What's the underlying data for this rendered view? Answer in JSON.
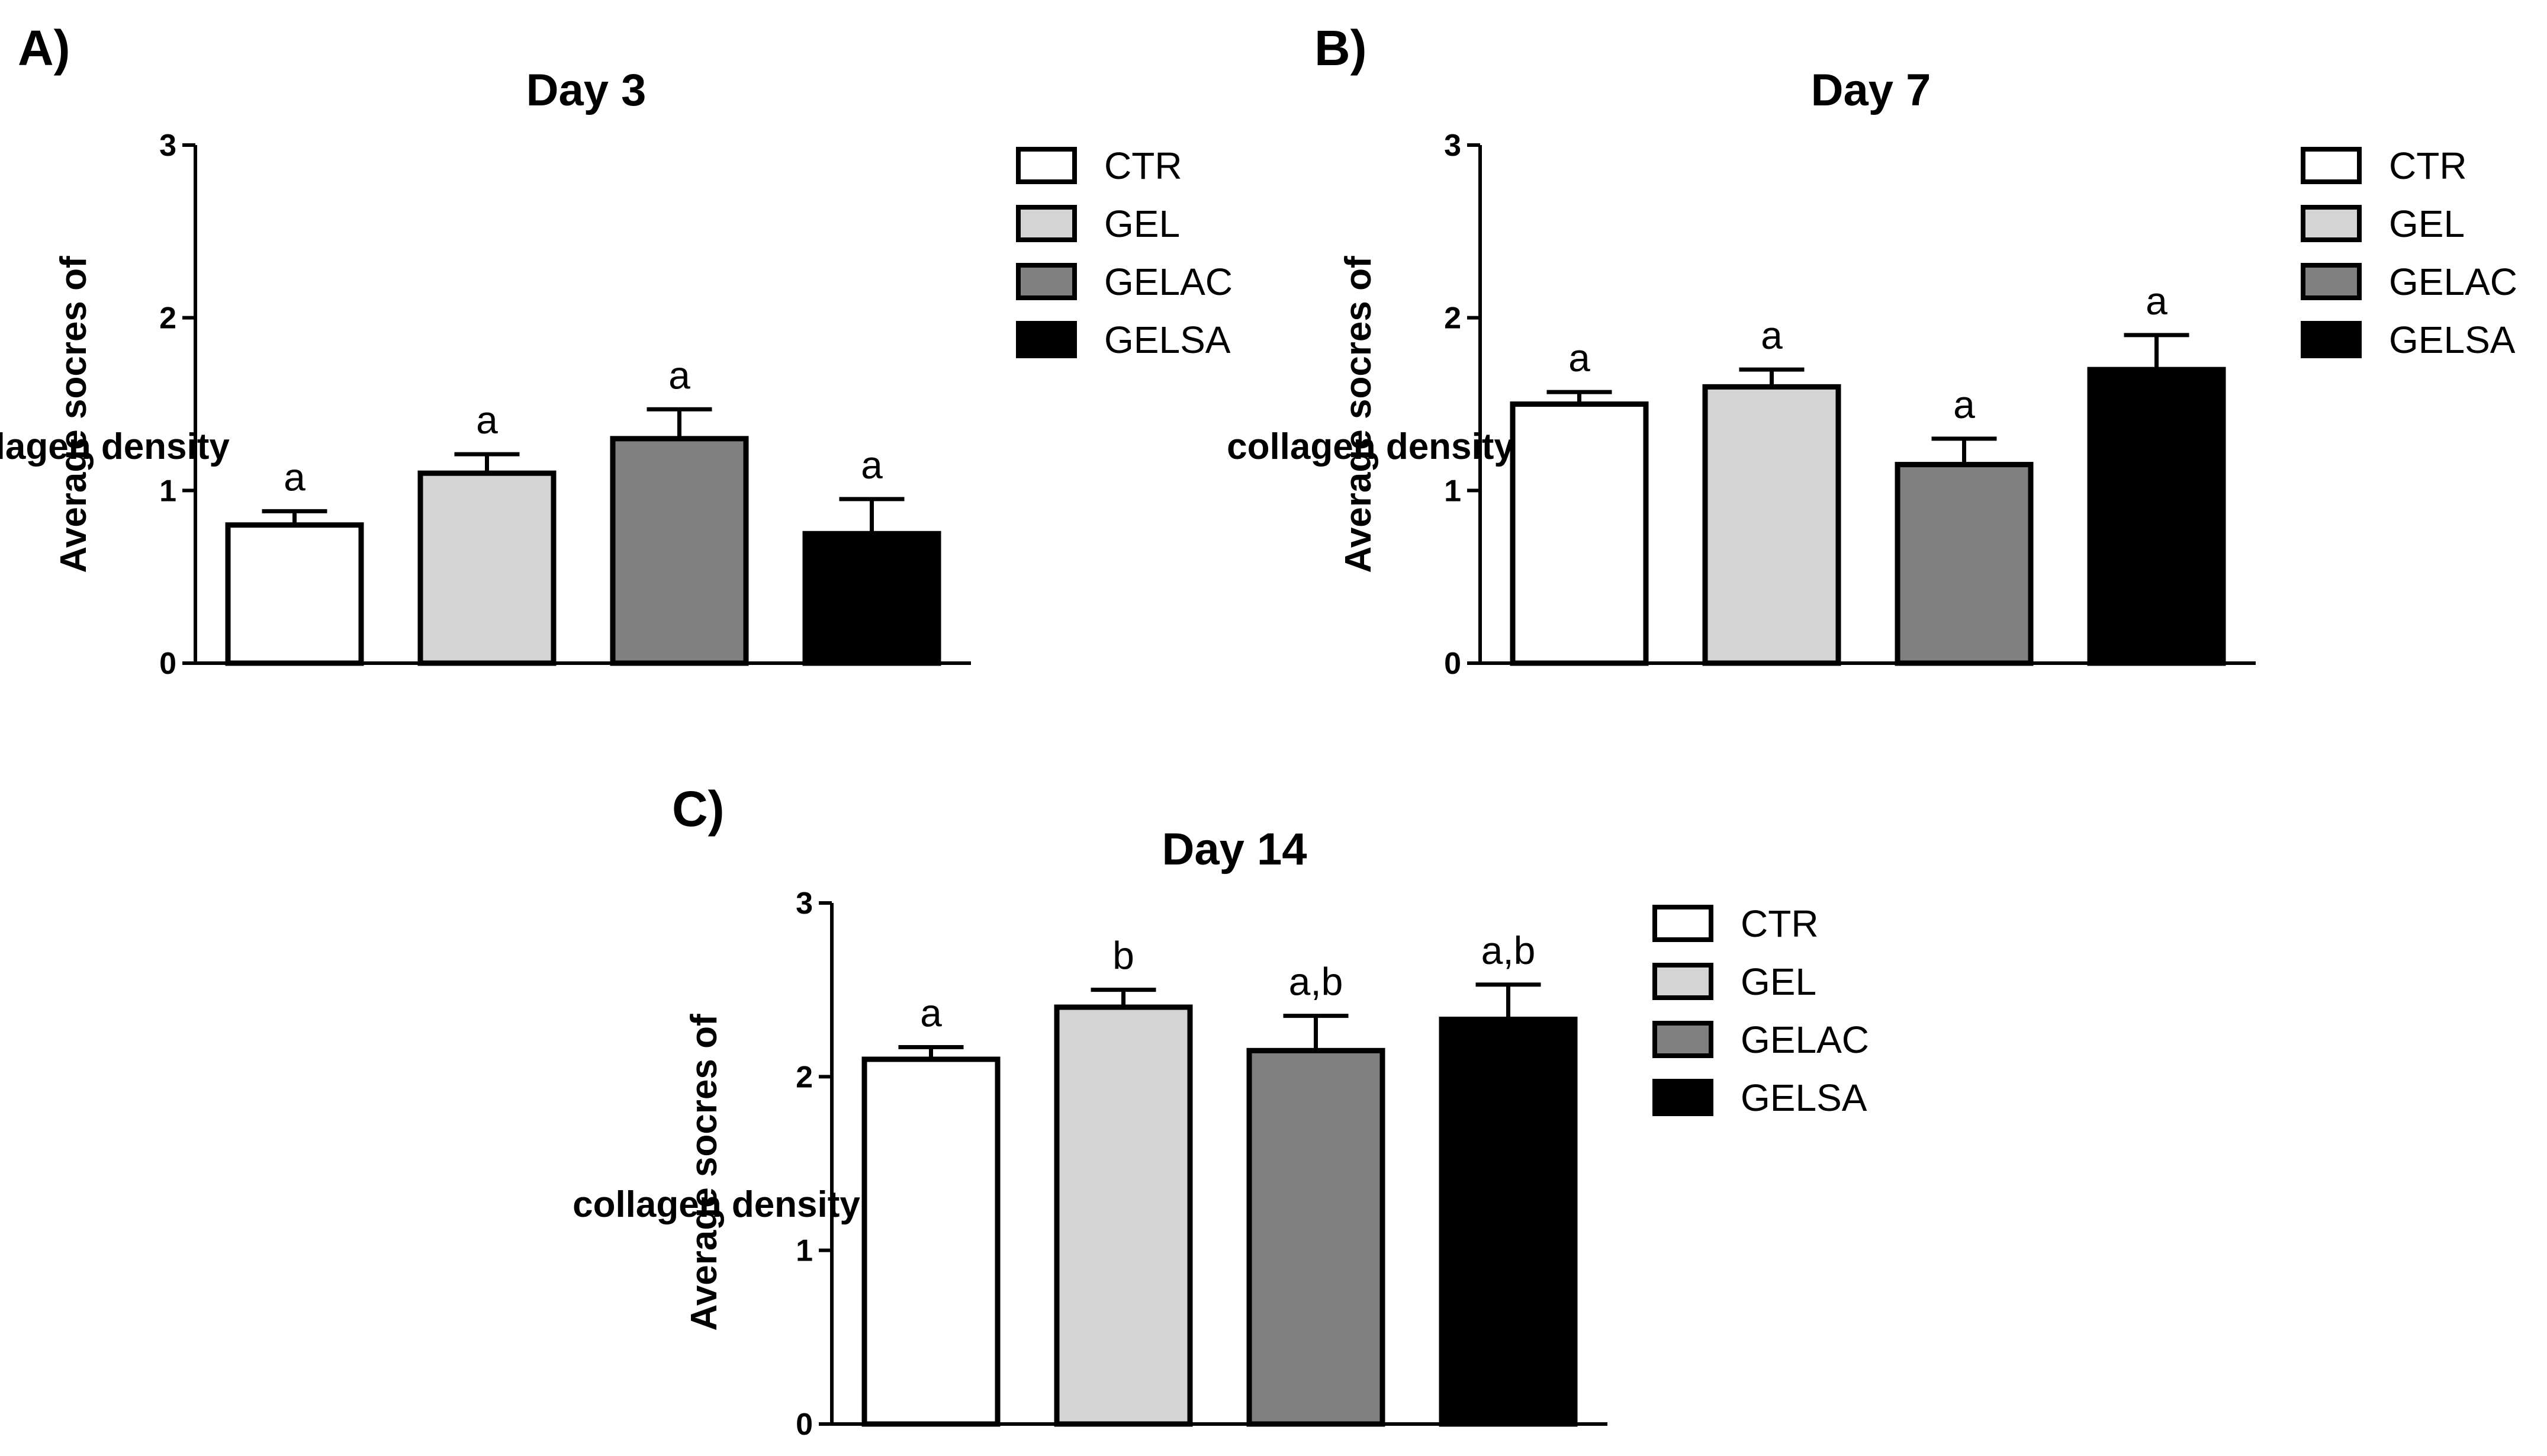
{
  "chart_data": [
    {
      "type": "bar",
      "panel": "A)",
      "title": "Day 3",
      "xlabel": "",
      "ylabel": [
        "Average socres of",
        "collagen density"
      ],
      "ylim": [
        0,
        3
      ],
      "yticks": [
        "0",
        "1",
        "2",
        "3"
      ],
      "categories": [
        "CTR",
        "GEL",
        "GELAC",
        "GELSA"
      ],
      "values": [
        0.8,
        1.1,
        1.3,
        0.75
      ],
      "errors": [
        0.08,
        0.11,
        0.17,
        0.2
      ],
      "significance": [
        "a",
        "a",
        "a",
        "a"
      ],
      "colors": [
        "#ffffff",
        "#d4d4d4",
        "#808080",
        "#000000"
      ],
      "legend": [
        "CTR",
        "GEL",
        "GELAC",
        "GELSA"
      ],
      "legend_position": "right"
    },
    {
      "type": "bar",
      "panel": "B)",
      "title": "Day 7",
      "xlabel": "",
      "ylabel": [
        "Average socres of",
        "collagen density"
      ],
      "ylim": [
        0,
        3
      ],
      "yticks": [
        "0",
        "1",
        "2",
        "3"
      ],
      "categories": [
        "CTR",
        "GEL",
        "GELAC",
        "GELSA"
      ],
      "values": [
        1.5,
        1.6,
        1.15,
        1.7
      ],
      "errors": [
        0.07,
        0.1,
        0.15,
        0.2
      ],
      "significance": [
        "a",
        "a",
        "a",
        "a"
      ],
      "colors": [
        "#ffffff",
        "#d4d4d4",
        "#808080",
        "#000000"
      ],
      "legend": [
        "CTR",
        "GEL",
        "GELAC",
        "GELSA"
      ],
      "legend_position": "right"
    },
    {
      "type": "bar",
      "panel": "C)",
      "title": "Day 14",
      "xlabel": "",
      "ylabel": [
        "Average socres of",
        "collagen density"
      ],
      "ylim": [
        0,
        3
      ],
      "yticks": [
        "0",
        "1",
        "2",
        "3"
      ],
      "categories": [
        "CTR",
        "GEL",
        "GELAC",
        "GELSA"
      ],
      "values": [
        2.1,
        2.4,
        2.15,
        2.33
      ],
      "errors": [
        0.07,
        0.1,
        0.2,
        0.2
      ],
      "significance": [
        "a",
        "b",
        "a,b",
        "a,b"
      ],
      "colors": [
        "#ffffff",
        "#d4d4d4",
        "#808080",
        "#000000"
      ],
      "legend": [
        "CTR",
        "GEL",
        "GELAC",
        "GELSA"
      ],
      "legend_position": "right"
    }
  ]
}
